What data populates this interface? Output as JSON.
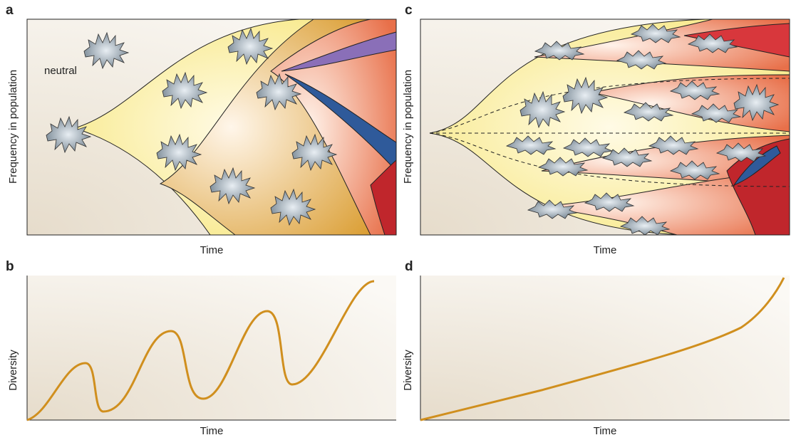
{
  "panels": [
    {
      "label": "a",
      "y_label": "Frequency in population",
      "x_label": "Time",
      "annotation": "neutral"
    },
    {
      "label": "b",
      "y_label": "Diversity",
      "x_label": "Time"
    },
    {
      "label": "c",
      "y_label": "Frequency in population",
      "x_label": "Time"
    },
    {
      "label": "d",
      "y_label": "Diversity",
      "x_label": "Time"
    }
  ]
}
